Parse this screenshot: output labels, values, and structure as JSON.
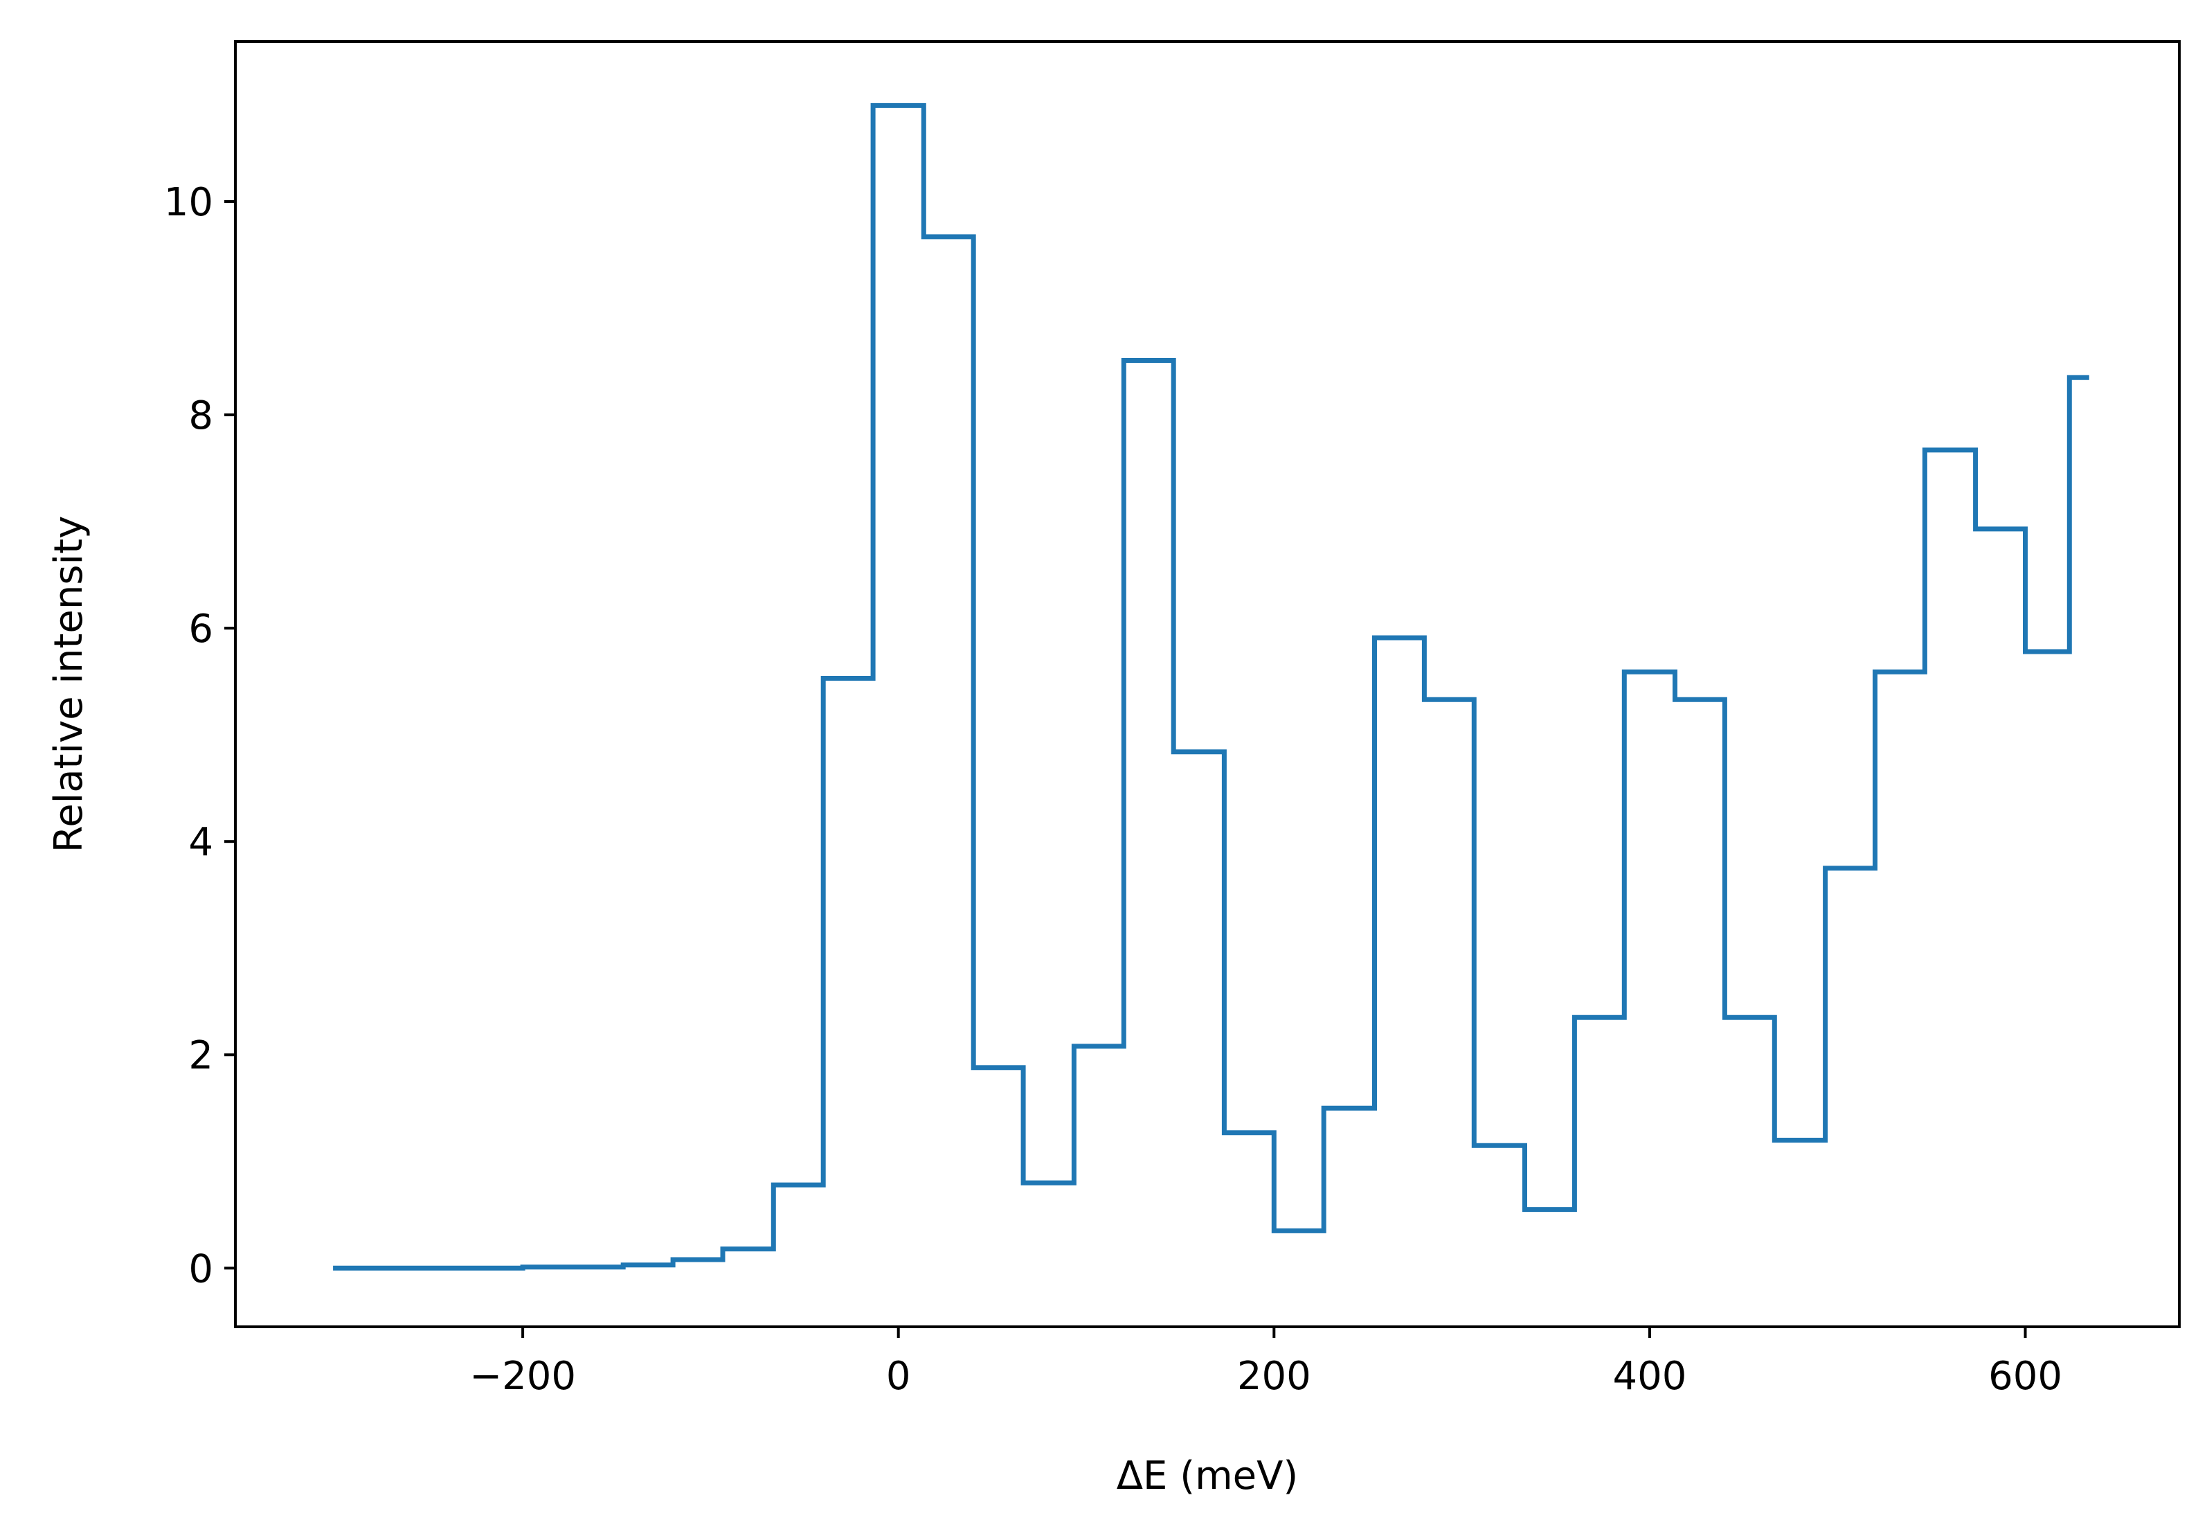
{
  "chart_data": {
    "type": "line",
    "drawstyle": "steps-mid",
    "xlabel": "ΔE (meV)",
    "ylabel": "Relative intensity",
    "xlim": [
      -353,
      682
    ],
    "ylim": [
      -0.55,
      11.5
    ],
    "xticks": [
      {
        "value": -200,
        "label": "−200"
      },
      {
        "value": 0,
        "label": "0"
      },
      {
        "value": 200,
        "label": "200"
      },
      {
        "value": 400,
        "label": "400"
      },
      {
        "value": 600,
        "label": "600"
      }
    ],
    "yticks": [
      {
        "value": 0,
        "label": "0"
      },
      {
        "value": 2,
        "label": "2"
      },
      {
        "value": 4,
        "label": "4"
      },
      {
        "value": 6,
        "label": "6"
      },
      {
        "value": 8,
        "label": "8"
      },
      {
        "value": 10,
        "label": "10"
      }
    ],
    "grid": false,
    "color": "#1f77b4",
    "x": [
      -301,
      -267,
      -240,
      -213,
      -187,
      -160,
      -133,
      -107,
      -80,
      -53,
      -27,
      0,
      27,
      53,
      80,
      107,
      133,
      160,
      187,
      213,
      240,
      267,
      293,
      320,
      347,
      373,
      400,
      427,
      453,
      480,
      507,
      533,
      560,
      587,
      613,
      634
    ],
    "y": [
      0,
      0,
      0,
      0,
      0.01,
      0.01,
      0.03,
      0.08,
      0.18,
      0.78,
      5.53,
      10.9,
      9.67,
      1.88,
      0.8,
      2.08,
      8.51,
      4.84,
      1.27,
      0.35,
      1.5,
      5.91,
      5.33,
      1.15,
      0.55,
      2.35,
      5.59,
      5.33,
      2.35,
      1.2,
      3.75,
      5.59,
      7.67,
      6.93,
      5.78,
      8.35
    ]
  }
}
